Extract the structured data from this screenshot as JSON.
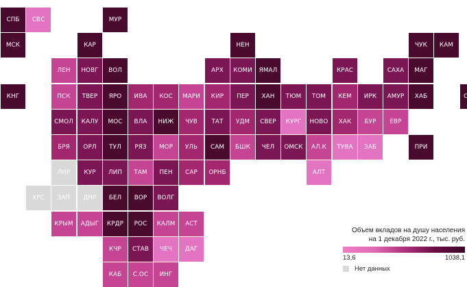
{
  "palette": {
    "d": "#4a0a2d",
    "m": "#7c1553",
    "r": "#a3276e",
    "p": "#c64494",
    "l": "#e374c1",
    "g": "#d9d9d9"
  },
  "regions": [
    {
      "code": "СПБ",
      "c": "d"
    },
    {
      "code": "СВС",
      "c": "l"
    },
    {
      "code": "МУР",
      "c": "d"
    },
    {
      "code": "МСК",
      "c": "d"
    },
    {
      "code": "КАР",
      "c": "d"
    },
    {
      "code": "НЕН",
      "c": "d"
    },
    {
      "code": "ЧУК",
      "c": "d"
    },
    {
      "code": "КАМ",
      "c": "d"
    },
    {
      "code": "ЛЕН",
      "c": "p"
    },
    {
      "code": "НОВГ",
      "c": "m"
    },
    {
      "code": "ВОЛ",
      "c": "d"
    },
    {
      "code": "АРХ",
      "c": "m"
    },
    {
      "code": "КОМИ",
      "c": "m"
    },
    {
      "code": "ЯМАЛ",
      "c": "d"
    },
    {
      "code": "КРАС",
      "c": "m"
    },
    {
      "code": "САХА",
      "c": "m"
    },
    {
      "code": "МАГ",
      "c": "d"
    },
    {
      "code": "КНГ",
      "c": "d"
    },
    {
      "code": "ПСК",
      "c": "p"
    },
    {
      "code": "ТВЕР",
      "c": "m"
    },
    {
      "code": "ЯРО",
      "c": "d"
    },
    {
      "code": "ИВА",
      "c": "r"
    },
    {
      "code": "КОС",
      "c": "r"
    },
    {
      "code": "МАРИ",
      "c": "p"
    },
    {
      "code": "КИР",
      "c": "r"
    },
    {
      "code": "ПЕР",
      "c": "m"
    },
    {
      "code": "ХАН",
      "c": "d"
    },
    {
      "code": "ТЮМ",
      "c": "m"
    },
    {
      "code": "ТОМ",
      "c": "m"
    },
    {
      "code": "КЕМ",
      "c": "r"
    },
    {
      "code": "ИРК",
      "c": "m"
    },
    {
      "code": "АМУР",
      "c": "m"
    },
    {
      "code": "ХАБ",
      "c": "d"
    },
    {
      "code": "СХЛН",
      "c": "d"
    },
    {
      "code": "СМОЛ",
      "c": "m"
    },
    {
      "code": "КАЛУ",
      "c": "m"
    },
    {
      "code": "МОС",
      "c": "d"
    },
    {
      "code": "ВЛА",
      "c": "m"
    },
    {
      "code": "НИЖ",
      "c": "d"
    },
    {
      "code": "ЧУВ",
      "c": "r"
    },
    {
      "code": "ТАТ",
      "c": "m"
    },
    {
      "code": "УДМ",
      "c": "r"
    },
    {
      "code": "СВЕР",
      "c": "m"
    },
    {
      "code": "КУРГ",
      "c": "l"
    },
    {
      "code": "НОВО",
      "c": "m"
    },
    {
      "code": "ХАК",
      "c": "r"
    },
    {
      "code": "БУР",
      "c": "p"
    },
    {
      "code": "ЕВР",
      "c": "p"
    },
    {
      "code": "БРЯ",
      "c": "r"
    },
    {
      "code": "ОРЛ",
      "c": "m"
    },
    {
      "code": "ТУЛ",
      "c": "d"
    },
    {
      "code": "РЯЗ",
      "c": "m"
    },
    {
      "code": "МОР",
      "c": "p"
    },
    {
      "code": "УЛЬ",
      "c": "r"
    },
    {
      "code": "САМ",
      "c": "d"
    },
    {
      "code": "БШК",
      "c": "p"
    },
    {
      "code": "ЧЕЛ",
      "c": "m"
    },
    {
      "code": "ОМСК",
      "c": "m"
    },
    {
      "code": "АЛ.К",
      "c": "p"
    },
    {
      "code": "ТУВА",
      "c": "l"
    },
    {
      "code": "ЗАБ",
      "c": "l"
    },
    {
      "code": "ПРИ",
      "c": "d"
    },
    {
      "code": "ЛНР",
      "c": "g"
    },
    {
      "code": "КУР",
      "c": "m"
    },
    {
      "code": "ЛИП",
      "c": "m"
    },
    {
      "code": "ТАМ",
      "c": "p"
    },
    {
      "code": "ПЕН",
      "c": "m"
    },
    {
      "code": "САР",
      "c": "r"
    },
    {
      "code": "ОРНБ",
      "c": "r"
    },
    {
      "code": "АЛТ",
      "c": "l"
    },
    {
      "code": "ХРС",
      "c": "g"
    },
    {
      "code": "ЗАП",
      "c": "g"
    },
    {
      "code": "ДНР",
      "c": "g"
    },
    {
      "code": "БЕЛ",
      "c": "d"
    },
    {
      "code": "ВОР",
      "c": "d"
    },
    {
      "code": "ВОЛГ",
      "c": "m"
    },
    {
      "code": "КРЫМ",
      "c": "p"
    },
    {
      "code": "АДЫГ",
      "c": "p"
    },
    {
      "code": "КРДР",
      "c": "d"
    },
    {
      "code": "РОС",
      "c": "d"
    },
    {
      "code": "КАЛМ",
      "c": "p"
    },
    {
      "code": "АСТ",
      "c": "p"
    },
    {
      "code": "КЧР",
      "c": "p"
    },
    {
      "code": "СТАВ",
      "c": "m"
    },
    {
      "code": "ЧЕЧ",
      "c": "l"
    },
    {
      "code": "ДАГ",
      "c": "l"
    },
    {
      "code": "КАБ",
      "c": "p"
    },
    {
      "code": "С.ОС",
      "c": "p"
    },
    {
      "code": "ИНГ",
      "c": "p"
    }
  ],
  "legend": {
    "title_line1": "Объем вкладов на душу населения",
    "title_line2": "на 1 декабря 2022 г., тыс. руб.",
    "min_label": "13,6",
    "max_label": "1038,1",
    "nodata_label": "Нет данных"
  }
}
